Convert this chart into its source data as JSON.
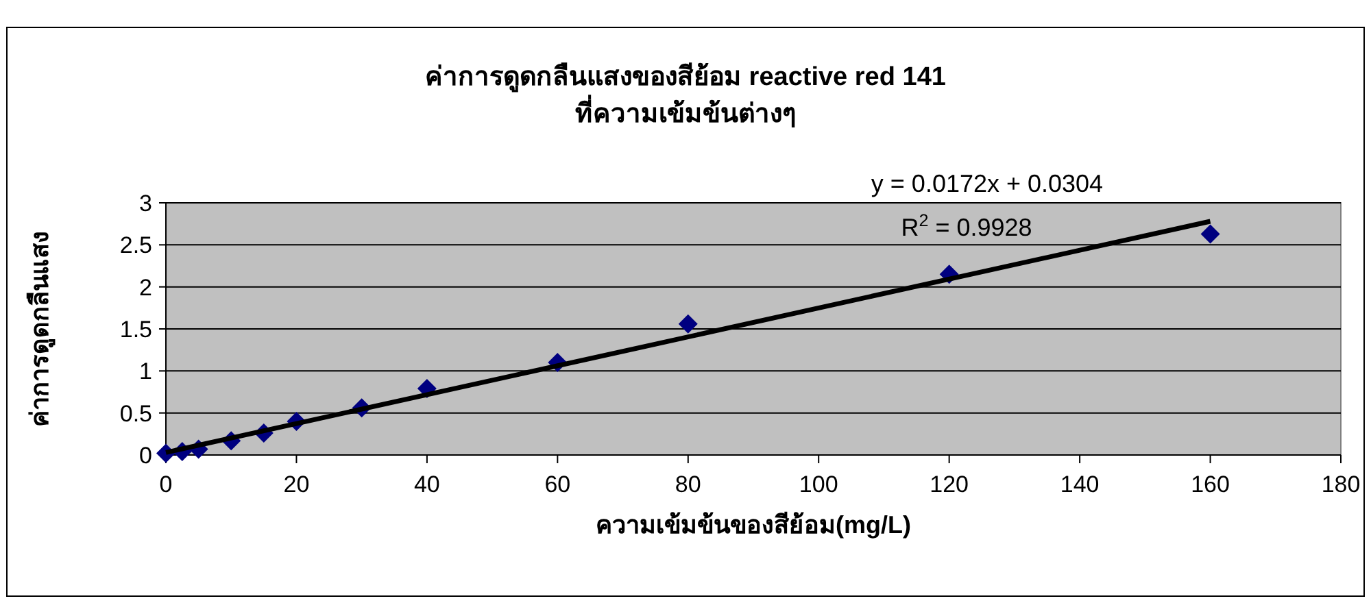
{
  "chart_data": {
    "type": "scatter",
    "title": "ค่าการดูดกลืนแสงของสีย้อม reactive red 141",
    "subtitle": "ที่ความเข้มข้นต่างๆ",
    "xlabel": "ความเข้มข้นของสีย้อม(mg/L)",
    "ylabel": "ค่าการดูดกลืนแสง",
    "x": [
      0,
      2.5,
      5,
      10,
      15,
      20,
      30,
      40,
      60,
      80,
      120,
      160
    ],
    "series": [
      {
        "color": "#000080",
        "values": [
          0.02,
          0.04,
          0.07,
          0.17,
          0.26,
          0.4,
          0.56,
          0.79,
          1.1,
          1.56,
          2.15,
          2.63
        ]
      },
      {
        "type": "line",
        "color": "#000000",
        "marker": "none",
        "x": [
          0,
          160
        ],
        "values": [
          0.03,
          2.78
        ]
      }
    ],
    "annotations": [
      "y = 0.0172x + 0.0304",
      "R$^{2}$ = 0.9928"
    ],
    "xlim": [
      0,
      180
    ],
    "ylim": [
      0,
      3
    ],
    "xticks": [
      0,
      20,
      40,
      60,
      80,
      100,
      120,
      140,
      160,
      180
    ],
    "yticks": [
      0,
      0.5,
      1,
      1.5,
      2,
      2.5,
      3
    ],
    "grid": "y",
    "marker": "diamond"
  }
}
